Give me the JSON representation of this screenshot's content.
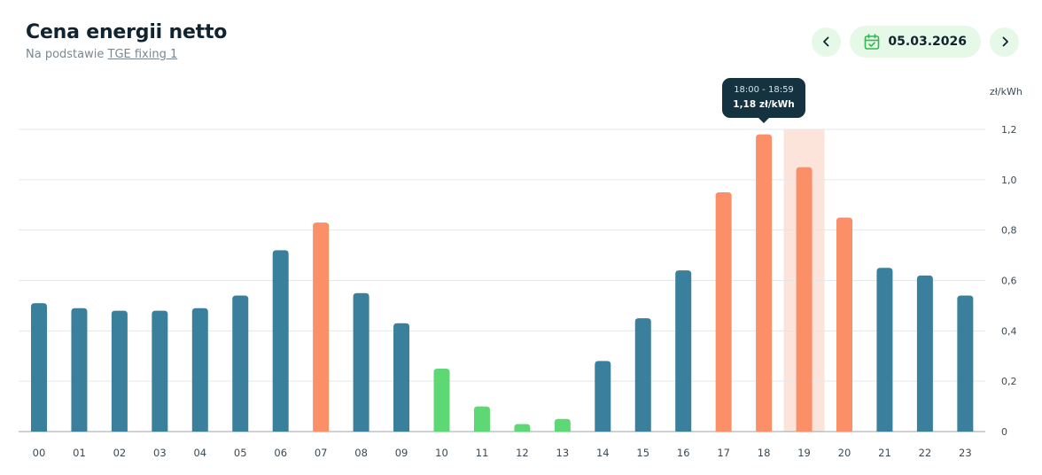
{
  "header": {
    "title": "Cena energii netto",
    "subtitle_prefix": "Na podstawie",
    "subtitle_link": "TGE fixing 1"
  },
  "nav": {
    "prev_icon": "chevron-left-icon",
    "next_icon": "chevron-right-icon",
    "calendar_icon": "calendar-check-icon",
    "date": "05.03.2026"
  },
  "tooltip": {
    "time_range": "18:00 - 18:59",
    "price": "1,18 zł/kWh",
    "hour": "18"
  },
  "colors": {
    "medium": "#3a7f9c",
    "high": "#fb8f68",
    "low": "#5ed874",
    "highlight_band": "#fde4da",
    "grid": "#e3e7ea",
    "axis": "#9aa5ac",
    "tooltip_bg": "#143240",
    "pill_bg": "#e6f8e8"
  },
  "chart_data": {
    "type": "bar",
    "title": "",
    "xlabel": "",
    "ylabel": "zł/kWh",
    "ylim": [
      0,
      1.2
    ],
    "y_ticks": [
      "0",
      "0,2",
      "0,4",
      "0,6",
      "0,8",
      "1,0",
      "1,2"
    ],
    "y_tick_values": [
      0,
      0.2,
      0.4,
      0.6,
      0.8,
      1.0,
      1.2
    ],
    "grid": true,
    "categories": [
      "00",
      "01",
      "02",
      "03",
      "04",
      "05",
      "06",
      "07",
      "08",
      "09",
      "10",
      "11",
      "12",
      "13",
      "14",
      "15",
      "16",
      "17",
      "18",
      "19",
      "20",
      "21",
      "22",
      "23"
    ],
    "values": [
      0.51,
      0.49,
      0.48,
      0.48,
      0.49,
      0.54,
      0.72,
      0.83,
      0.55,
      0.43,
      0.25,
      0.1,
      0.03,
      0.05,
      0.28,
      0.45,
      0.64,
      0.95,
      1.18,
      1.05,
      0.85,
      0.65,
      0.62,
      0.54
    ],
    "price_levels": [
      "medium",
      "medium",
      "medium",
      "medium",
      "medium",
      "medium",
      "medium",
      "high",
      "medium",
      "medium",
      "low",
      "low",
      "low",
      "low",
      "medium",
      "medium",
      "medium",
      "high",
      "high",
      "high",
      "high",
      "medium",
      "medium",
      "medium"
    ],
    "highlighted_category": "19"
  }
}
